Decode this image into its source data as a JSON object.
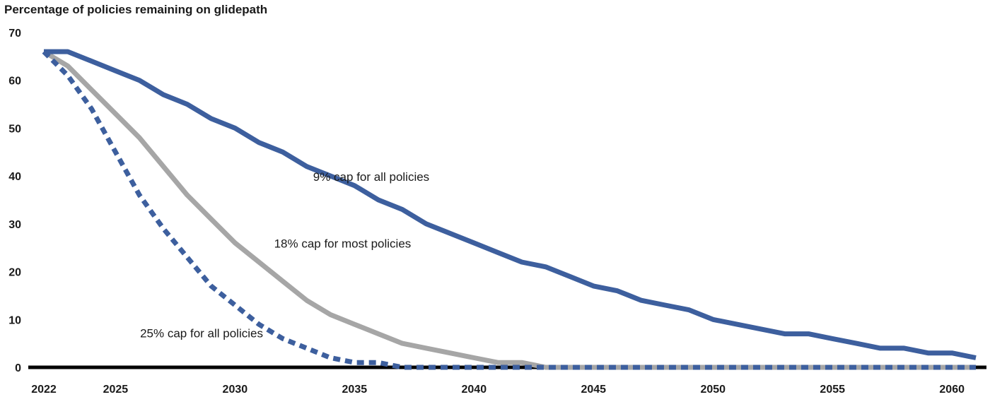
{
  "chart_data": {
    "type": "line",
    "title": "Percentage of policies remaining on glidepath",
    "xlabel": "",
    "ylabel": "",
    "xlim": [
      2022,
      2061
    ],
    "ylim": [
      0,
      70
    ],
    "y_ticks": [
      0,
      10,
      20,
      30,
      40,
      50,
      60,
      70
    ],
    "x_ticks": [
      2022,
      2025,
      2030,
      2035,
      2040,
      2045,
      2050,
      2055,
      2060
    ],
    "grid": false,
    "legend": "none",
    "x": [
      2022,
      2023,
      2024,
      2025,
      2026,
      2027,
      2028,
      2029,
      2030,
      2031,
      2032,
      2033,
      2034,
      2035,
      2036,
      2037,
      2038,
      2039,
      2040,
      2041,
      2042,
      2043,
      2044,
      2045,
      2046,
      2047,
      2048,
      2049,
      2050,
      2051,
      2052,
      2053,
      2054,
      2055,
      2056,
      2057,
      2058,
      2059,
      2060,
      2061
    ],
    "series": [
      {
        "name": "9% cap for all policies",
        "color": "#3d5f9e",
        "style": "solid",
        "values": [
          66,
          66,
          64,
          62,
          60,
          57,
          55,
          52,
          50,
          47,
          45,
          42,
          40,
          38,
          35,
          33,
          30,
          28,
          26,
          24,
          22,
          21,
          19,
          17,
          16,
          14,
          13,
          12,
          10,
          9,
          8,
          7,
          7,
          6,
          5,
          4,
          4,
          3,
          3,
          2
        ]
      },
      {
        "name": "18% cap for most policies",
        "color": "#a6a6a6",
        "style": "solid",
        "values": [
          66,
          63,
          58,
          53,
          48,
          42,
          36,
          31,
          26,
          22,
          18,
          14,
          11,
          9,
          7,
          5,
          4,
          3,
          2,
          1,
          1,
          0,
          0,
          0,
          0,
          0,
          0,
          0,
          0,
          0,
          0,
          0,
          0,
          0,
          0,
          0,
          0,
          0,
          0,
          0
        ]
      },
      {
        "name": "25% cap for all policies",
        "color": "#3d5f9e",
        "style": "dashed",
        "values": [
          66,
          61,
          54,
          45,
          36,
          29,
          23,
          17,
          13,
          9,
          6,
          4,
          2,
          1,
          1,
          0,
          0,
          0,
          0,
          0,
          0,
          0,
          0,
          0,
          0,
          0,
          0,
          0,
          0,
          0,
          0,
          0,
          0,
          0,
          0,
          0,
          0,
          0,
          0,
          0
        ]
      }
    ],
    "annotations": [
      {
        "text": "9% cap for all policies",
        "x": 2035.7,
        "y": 39
      },
      {
        "text": "18% cap for most policies",
        "x": 2034.5,
        "y": 25
      },
      {
        "text": "25% cap for all policies",
        "x": 2028.6,
        "y": 6.3
      }
    ]
  }
}
